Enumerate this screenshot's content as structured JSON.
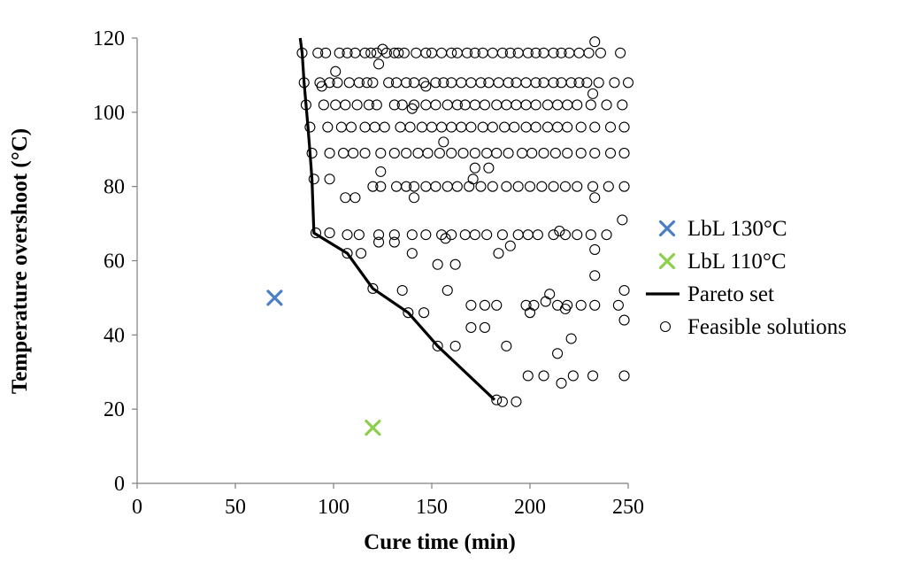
{
  "chart_data": {
    "type": "scatter",
    "title": "",
    "xlabel": "Cure time (min)",
    "ylabel": "Temperature overshoot (°C)",
    "xlim": [
      0,
      250
    ],
    "ylim": [
      0,
      120
    ],
    "x_ticks": [
      0,
      50,
      100,
      150,
      200,
      250
    ],
    "y_ticks": [
      0,
      20,
      40,
      60,
      80,
      100,
      120
    ],
    "grid": false,
    "legend_position": "right",
    "series": [
      {
        "name": "LbL 130°C",
        "marker": "x",
        "color": "#4a7fc8",
        "points": [
          [
            70,
            50
          ]
        ]
      },
      {
        "name": "LbL 110°C",
        "marker": "x",
        "color": "#8ccf4d",
        "points": [
          [
            120,
            15
          ]
        ]
      },
      {
        "name": "Pareto set",
        "marker": "line",
        "color": "#000000",
        "points": [
          [
            83,
            120
          ],
          [
            84,
            116
          ],
          [
            85,
            108
          ],
          [
            86,
            102
          ],
          [
            87,
            96
          ],
          [
            88,
            89
          ],
          [
            89,
            82
          ],
          [
            90,
            67.5
          ],
          [
            107,
            62
          ],
          [
            120,
            52.5
          ],
          [
            138,
            46
          ],
          [
            153,
            37
          ],
          [
            182,
            22.5
          ]
        ]
      },
      {
        "name": "Feasible solutions",
        "marker": "open-circle",
        "color": "#000000",
        "points": [
          [
            84,
            116
          ],
          [
            92,
            116
          ],
          [
            96,
            116
          ],
          [
            103,
            116
          ],
          [
            107,
            116
          ],
          [
            111,
            116
          ],
          [
            116,
            116
          ],
          [
            119,
            116
          ],
          [
            122,
            116
          ],
          [
            127,
            116
          ],
          [
            131,
            116
          ],
          [
            133,
            116
          ],
          [
            136,
            116
          ],
          [
            142,
            116
          ],
          [
            147,
            116
          ],
          [
            150,
            116
          ],
          [
            155,
            116
          ],
          [
            160,
            116
          ],
          [
            163,
            116
          ],
          [
            168,
            116
          ],
          [
            172,
            116
          ],
          [
            176,
            116
          ],
          [
            181,
            116
          ],
          [
            186,
            116
          ],
          [
            190,
            116
          ],
          [
            194,
            116
          ],
          [
            199,
            116
          ],
          [
            203,
            116
          ],
          [
            207,
            116
          ],
          [
            212,
            116
          ],
          [
            216,
            116
          ],
          [
            220,
            116
          ],
          [
            225,
            116
          ],
          [
            230,
            116
          ],
          [
            236,
            116
          ],
          [
            246,
            116
          ],
          [
            125,
            117
          ],
          [
            233,
            119
          ],
          [
            85,
            108
          ],
          [
            93,
            108
          ],
          [
            98,
            108
          ],
          [
            102,
            108
          ],
          [
            108,
            108
          ],
          [
            113,
            108
          ],
          [
            117,
            108
          ],
          [
            120,
            108
          ],
          [
            128,
            108
          ],
          [
            132,
            108
          ],
          [
            137,
            108
          ],
          [
            141,
            108
          ],
          [
            146,
            108
          ],
          [
            152,
            108
          ],
          [
            156,
            108
          ],
          [
            160,
            108
          ],
          [
            165,
            108
          ],
          [
            170,
            108
          ],
          [
            175,
            108
          ],
          [
            179,
            108
          ],
          [
            184,
            108
          ],
          [
            189,
            108
          ],
          [
            193,
            108
          ],
          [
            198,
            108
          ],
          [
            203,
            108
          ],
          [
            207,
            108
          ],
          [
            212,
            108
          ],
          [
            216,
            108
          ],
          [
            221,
            108
          ],
          [
            225,
            108
          ],
          [
            229,
            108
          ],
          [
            235,
            108
          ],
          [
            243,
            108
          ],
          [
            250,
            108
          ],
          [
            94,
            107
          ],
          [
            101,
            111
          ],
          [
            123,
            113
          ],
          [
            147,
            107
          ],
          [
            86,
            102
          ],
          [
            95,
            102
          ],
          [
            101,
            102
          ],
          [
            106,
            102
          ],
          [
            112,
            102
          ],
          [
            118,
            102
          ],
          [
            122,
            102
          ],
          [
            131,
            102
          ],
          [
            135,
            102
          ],
          [
            141,
            102
          ],
          [
            147,
            102
          ],
          [
            152,
            102
          ],
          [
            158,
            102
          ],
          [
            163,
            102
          ],
          [
            167,
            102
          ],
          [
            172,
            102
          ],
          [
            177,
            102
          ],
          [
            183,
            102
          ],
          [
            188,
            102
          ],
          [
            193,
            102
          ],
          [
            198,
            102
          ],
          [
            203,
            102
          ],
          [
            209,
            102
          ],
          [
            214,
            102
          ],
          [
            219,
            102
          ],
          [
            224,
            102
          ],
          [
            231,
            102
          ],
          [
            239,
            102
          ],
          [
            247,
            102
          ],
          [
            140,
            101
          ],
          [
            232,
            105
          ],
          [
            88,
            96
          ],
          [
            97,
            96
          ],
          [
            104,
            96
          ],
          [
            109,
            96
          ],
          [
            116,
            96
          ],
          [
            121,
            96
          ],
          [
            126,
            96
          ],
          [
            134,
            96
          ],
          [
            139,
            96
          ],
          [
            145,
            96
          ],
          [
            150,
            96
          ],
          [
            155,
            96
          ],
          [
            160,
            96
          ],
          [
            165,
            96
          ],
          [
            170,
            96
          ],
          [
            176,
            96
          ],
          [
            181,
            96
          ],
          [
            187,
            96
          ],
          [
            192,
            96
          ],
          [
            198,
            96
          ],
          [
            203,
            96
          ],
          [
            209,
            96
          ],
          [
            214,
            96
          ],
          [
            219,
            96
          ],
          [
            226,
            96
          ],
          [
            233,
            96
          ],
          [
            241,
            96
          ],
          [
            248,
            96
          ],
          [
            156,
            92
          ],
          [
            89,
            89
          ],
          [
            98,
            89
          ],
          [
            105,
            89
          ],
          [
            110,
            89
          ],
          [
            116,
            89
          ],
          [
            124,
            89
          ],
          [
            131,
            89
          ],
          [
            137,
            89
          ],
          [
            143,
            89
          ],
          [
            148,
            89
          ],
          [
            154,
            89
          ],
          [
            160,
            89
          ],
          [
            166,
            89
          ],
          [
            172,
            89
          ],
          [
            178,
            89
          ],
          [
            183,
            89
          ],
          [
            189,
            89
          ],
          [
            196,
            89
          ],
          [
            201,
            89
          ],
          [
            207,
            89
          ],
          [
            213,
            89
          ],
          [
            219,
            89
          ],
          [
            226,
            89
          ],
          [
            233,
            89
          ],
          [
            241,
            89
          ],
          [
            248,
            89
          ],
          [
            172,
            85
          ],
          [
            179,
            85
          ],
          [
            124,
            84
          ],
          [
            90,
            82
          ],
          [
            98,
            82
          ],
          [
            106,
            77
          ],
          [
            111,
            77
          ],
          [
            120,
            80
          ],
          [
            124,
            80
          ],
          [
            132,
            80
          ],
          [
            137,
            80
          ],
          [
            141,
            80
          ],
          [
            147,
            80
          ],
          [
            152,
            80
          ],
          [
            158,
            80
          ],
          [
            163,
            80
          ],
          [
            169,
            80
          ],
          [
            175,
            80
          ],
          [
            181,
            80
          ],
          [
            188,
            80
          ],
          [
            194,
            80
          ],
          [
            200,
            80
          ],
          [
            206,
            80
          ],
          [
            212,
            80
          ],
          [
            218,
            80
          ],
          [
            224,
            80
          ],
          [
            232,
            80
          ],
          [
            240,
            80
          ],
          [
            248,
            80
          ],
          [
            141,
            77
          ],
          [
            233,
            77
          ],
          [
            171,
            82
          ],
          [
            91,
            67.5
          ],
          [
            98,
            67.5
          ],
          [
            107,
            67
          ],
          [
            113,
            67
          ],
          [
            123,
            67
          ],
          [
            131,
            67
          ],
          [
            140,
            67
          ],
          [
            147,
            67
          ],
          [
            155,
            67
          ],
          [
            160,
            67
          ],
          [
            167,
            67
          ],
          [
            172,
            67
          ],
          [
            178,
            67
          ],
          [
            186,
            67
          ],
          [
            194,
            67
          ],
          [
            199,
            67
          ],
          [
            204,
            67
          ],
          [
            212,
            67
          ],
          [
            218,
            67
          ],
          [
            224,
            67
          ],
          [
            231,
            67
          ],
          [
            239,
            67
          ],
          [
            247,
            71
          ],
          [
            123,
            65
          ],
          [
            131,
            65
          ],
          [
            157,
            66
          ],
          [
            215,
            68
          ],
          [
            233,
            63
          ],
          [
            107,
            62
          ],
          [
            114,
            62
          ],
          [
            140,
            62
          ],
          [
            153,
            59
          ],
          [
            162,
            59
          ],
          [
            184,
            62
          ],
          [
            190,
            64
          ],
          [
            135,
            52
          ],
          [
            158,
            52
          ],
          [
            210,
            51
          ],
          [
            233,
            56
          ],
          [
            248,
            52
          ],
          [
            120,
            52.5
          ],
          [
            138,
            46
          ],
          [
            146,
            46
          ],
          [
            170,
            48
          ],
          [
            177,
            48
          ],
          [
            183,
            48
          ],
          [
            198,
            48
          ],
          [
            202,
            48
          ],
          [
            208,
            49
          ],
          [
            214,
            48
          ],
          [
            219,
            48
          ],
          [
            226,
            48
          ],
          [
            233,
            48
          ],
          [
            245,
            48
          ],
          [
            200,
            46
          ],
          [
            218,
            47
          ],
          [
            248,
            44
          ],
          [
            153,
            37
          ],
          [
            162,
            37
          ],
          [
            170,
            42
          ],
          [
            177,
            42
          ],
          [
            188,
            37
          ],
          [
            214,
            35
          ],
          [
            221,
            39
          ],
          [
            183,
            22.5
          ],
          [
            186,
            22
          ],
          [
            193,
            22
          ],
          [
            199,
            29
          ],
          [
            207,
            29
          ],
          [
            216,
            27
          ],
          [
            222,
            29
          ],
          [
            232,
            29
          ],
          [
            248,
            29
          ]
        ]
      }
    ]
  }
}
